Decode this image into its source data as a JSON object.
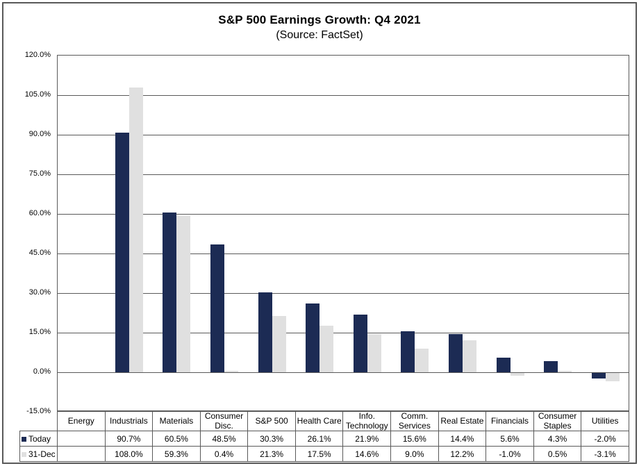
{
  "title": "S&P 500 Earnings Growth: Q4 2021",
  "subtitle": "(Source: FactSet)",
  "colors": {
    "series_today": "#1C2B54",
    "series_dec31": "#E0E0E0",
    "grid": "#595959",
    "text": "#000000",
    "background": "#FFFFFF"
  },
  "chart_data": {
    "type": "bar",
    "title": "S&P 500 Earnings Growth: Q4 2021",
    "subtitle": "(Source: FactSet)",
    "categories": [
      "Energy",
      "Industrials",
      "Materials",
      "Consumer Disc.",
      "S&P 500",
      "Health Care",
      "Info. Technology",
      "Comm. Services",
      "Real Estate",
      "Financials",
      "Consumer Staples",
      "Utilities"
    ],
    "series": [
      {
        "name": "Today",
        "color": "#1C2B54",
        "values": [
          null,
          90.7,
          60.5,
          48.5,
          30.3,
          26.1,
          21.9,
          15.6,
          14.4,
          5.6,
          4.3,
          -2.0
        ]
      },
      {
        "name": "31-Dec",
        "color": "#E0E0E0",
        "values": [
          null,
          108.0,
          59.3,
          0.4,
          21.3,
          17.5,
          14.6,
          9.0,
          12.2,
          -1.0,
          0.5,
          -3.1
        ]
      }
    ],
    "ylim": [
      -15,
      120
    ],
    "ytick_step": 15,
    "ytick_labels": [
      "120.0%",
      "105.0%",
      "90.0%",
      "75.0%",
      "60.0%",
      "45.0%",
      "30.0%",
      "15.0%",
      "0.0%",
      "-15.0%"
    ],
    "value_suffix": "%",
    "grid": true,
    "legend_position": "table-left",
    "table_shown": true
  }
}
